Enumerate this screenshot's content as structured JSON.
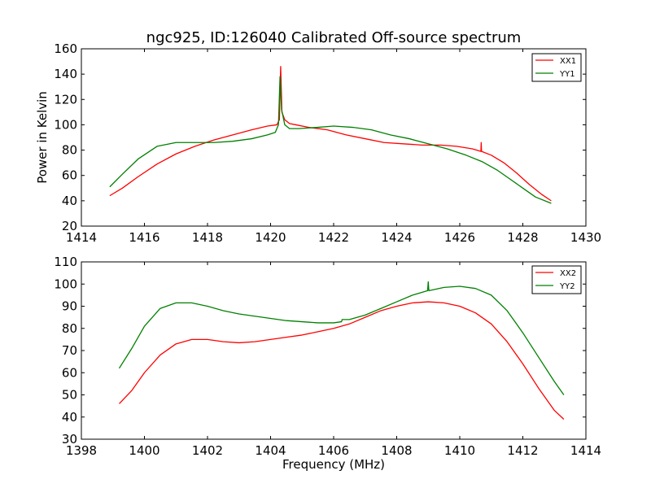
{
  "chart_data": [
    {
      "type": "line",
      "title": "ngc925, ID:126040 Calibrated Off-source spectrum",
      "xlabel": "",
      "ylabel": "Power in Kelvin",
      "xlim": [
        1414,
        1430
      ],
      "ylim": [
        20,
        160
      ],
      "xticks": [
        1414,
        1416,
        1418,
        1420,
        1422,
        1424,
        1426,
        1428,
        1430
      ],
      "yticks": [
        20,
        40,
        60,
        80,
        100,
        120,
        140,
        160
      ],
      "grid": false,
      "legend_position": "top-right",
      "series": [
        {
          "name": "XX1",
          "color": "#ff0000",
          "x": [
            1414.9,
            1415.3,
            1415.8,
            1416.4,
            1417.0,
            1417.6,
            1418.2,
            1418.8,
            1419.4,
            1419.9,
            1420.2,
            1420.28,
            1420.32,
            1420.36,
            1420.45,
            1420.6,
            1420.8,
            1421.2,
            1421.8,
            1422.4,
            1423.0,
            1423.6,
            1424.2,
            1424.8,
            1425.4,
            1425.9,
            1426.4,
            1426.67,
            1426.68,
            1426.69,
            1427.0,
            1427.4,
            1427.8,
            1428.2,
            1428.6,
            1428.9
          ],
          "y": [
            44,
            50,
            59,
            69,
            77,
            83,
            88,
            92,
            96,
            99,
            100,
            104,
            146,
            110,
            104,
            101,
            100,
            98,
            96,
            92,
            89,
            86,
            85,
            84,
            84,
            83,
            81,
            79,
            86,
            79,
            76,
            70,
            62,
            53,
            45,
            40
          ]
        },
        {
          "name": "YY1",
          "color": "#008000",
          "x": [
            1414.9,
            1415.3,
            1415.8,
            1416.4,
            1417.0,
            1417.6,
            1418.2,
            1418.8,
            1419.4,
            1419.9,
            1420.15,
            1420.25,
            1420.3,
            1420.35,
            1420.45,
            1420.6,
            1420.9,
            1421.5,
            1422.0,
            1422.6,
            1423.2,
            1423.8,
            1424.4,
            1425.0,
            1425.6,
            1426.2,
            1426.7,
            1427.2,
            1427.6,
            1428.0,
            1428.4,
            1428.9
          ],
          "y": [
            51,
            61,
            73,
            83,
            86,
            86,
            86,
            87,
            89,
            92,
            94,
            100,
            138,
            112,
            100,
            97,
            97,
            98,
            99,
            98,
            96,
            92,
            89,
            85,
            81,
            76,
            71,
            64,
            57,
            50,
            43,
            38
          ]
        }
      ]
    },
    {
      "type": "line",
      "title": "",
      "xlabel": "Frequency (MHz)",
      "ylabel": "",
      "xlim": [
        1398,
        1414
      ],
      "ylim": [
        30,
        110
      ],
      "xticks": [
        1398,
        1400,
        1402,
        1404,
        1406,
        1408,
        1410,
        1412,
        1414
      ],
      "yticks": [
        30,
        40,
        50,
        60,
        70,
        80,
        90,
        100,
        110
      ],
      "grid": false,
      "legend_position": "top-right",
      "series": [
        {
          "name": "XX2",
          "color": "#ff0000",
          "x": [
            1399.2,
            1399.6,
            1400.0,
            1400.5,
            1401.0,
            1401.5,
            1402.0,
            1402.5,
            1403.0,
            1403.5,
            1404.0,
            1404.5,
            1405.0,
            1405.5,
            1406.0,
            1406.5,
            1407.0,
            1407.5,
            1408.0,
            1408.5,
            1409.0,
            1409.5,
            1410.0,
            1410.5,
            1411.0,
            1411.5,
            1412.0,
            1412.5,
            1413.0,
            1413.3
          ],
          "y": [
            46,
            52,
            60,
            68,
            73,
            75,
            75,
            74,
            73.5,
            74,
            75,
            76,
            77,
            78.5,
            80,
            82,
            85,
            88,
            90,
            91.5,
            92,
            91.5,
            90,
            87,
            82,
            74,
            64,
            53,
            43,
            39
          ]
        },
        {
          "name": "YY2",
          "color": "#008000",
          "x": [
            1399.2,
            1399.6,
            1400.0,
            1400.5,
            1401.0,
            1401.5,
            1402.0,
            1402.5,
            1403.0,
            1403.5,
            1404.0,
            1404.5,
            1405.0,
            1405.5,
            1406.0,
            1406.25,
            1406.27,
            1406.5,
            1407.0,
            1407.5,
            1408.0,
            1408.5,
            1408.98,
            1409.0,
            1409.02,
            1409.5,
            1410.0,
            1410.5,
            1411.0,
            1411.5,
            1412.0,
            1412.5,
            1413.0,
            1413.3
          ],
          "y": [
            62,
            71,
            81,
            89,
            91.5,
            91.5,
            90,
            88,
            86.5,
            85.5,
            84.5,
            83.5,
            83,
            82.5,
            82.5,
            83,
            84,
            84,
            86,
            89,
            92,
            95,
            97,
            101,
            97,
            98.5,
            99,
            98,
            95,
            88,
            78,
            67,
            56,
            50
          ]
        }
      ]
    }
  ]
}
